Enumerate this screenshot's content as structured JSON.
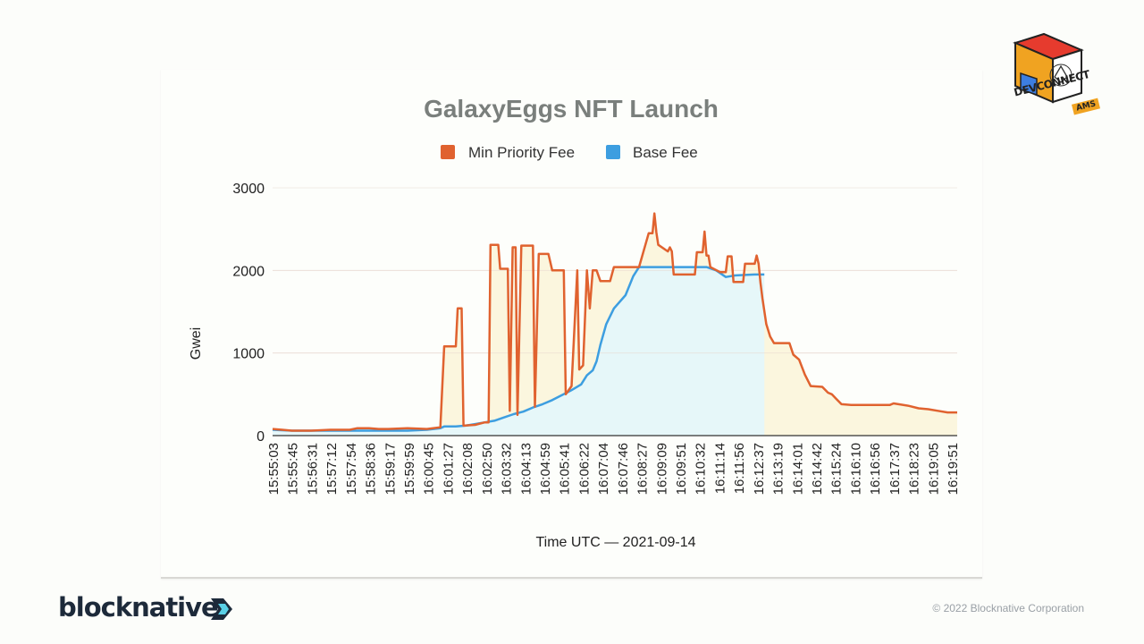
{
  "branding": {
    "company": "blocknative",
    "copyright": "© 2022 Blocknative Corporation",
    "event_logo_text": "DEVCONNECT",
    "event_logo_badge": "AMS"
  },
  "colors": {
    "priority": "#e0622f",
    "base": "#3d9ee0",
    "priority_fill": "#fbf6de",
    "base_fill": "#e6f7f9"
  },
  "chart_data": {
    "type": "area",
    "title": "GalaxyEggs NFT Launch",
    "xlabel": "Time UTC — 2021-09-14",
    "ylabel": "Gwei",
    "ylim": [
      0,
      3000
    ],
    "yticks": [
      "0",
      "1000",
      "2000",
      "3000"
    ],
    "legend_position": "top-center",
    "grid": true,
    "xticks": [
      "15:55:03",
      "15:55:45",
      "15:56:31",
      "15:57:12",
      "15:57:54",
      "15:58:36",
      "15:59:17",
      "15:59:59",
      "16:00:45",
      "16:01:27",
      "16:02:08",
      "16:02:50",
      "16:03:32",
      "16:04:13",
      "16:04:59",
      "16:05:41",
      "16:06:22",
      "16:07:04",
      "16:07:46",
      "16:08:27",
      "16:09:09",
      "16:09:51",
      "16:10:32",
      "16:11:14",
      "16:11:56",
      "16:12:37",
      "16:13:19",
      "16:14:01",
      "16:14:42",
      "16:15:24",
      "16:16:10",
      "16:16:56",
      "16:17:37",
      "16:18:23",
      "16:19:05",
      "16:19:51"
    ],
    "x_range": [
      0,
      35.5
    ],
    "series": [
      {
        "name": "Min Priority Fee",
        "points": [
          [
            0,
            80
          ],
          [
            0.5,
            70
          ],
          [
            1,
            60
          ],
          [
            2,
            60
          ],
          [
            3,
            70
          ],
          [
            4,
            70
          ],
          [
            4.4,
            90
          ],
          [
            5,
            90
          ],
          [
            5.5,
            80
          ],
          [
            6,
            80
          ],
          [
            7,
            90
          ],
          [
            8,
            80
          ],
          [
            8.7,
            100
          ],
          [
            8.9,
            1080
          ],
          [
            9.5,
            1080
          ],
          [
            9.6,
            1540
          ],
          [
            9.8,
            1540
          ],
          [
            9.9,
            120
          ],
          [
            10.5,
            130
          ],
          [
            11,
            160
          ],
          [
            11.2,
            160
          ],
          [
            11.3,
            2310
          ],
          [
            11.7,
            2310
          ],
          [
            11.8,
            2020
          ],
          [
            12.2,
            2020
          ],
          [
            12.3,
            300
          ],
          [
            12.45,
            2280
          ],
          [
            12.6,
            2280
          ],
          [
            12.7,
            250
          ],
          [
            12.9,
            2300
          ],
          [
            13.5,
            2300
          ],
          [
            13.6,
            350
          ],
          [
            13.8,
            2200
          ],
          [
            14.3,
            2200
          ],
          [
            14.5,
            2000
          ],
          [
            15,
            2000
          ],
          [
            15.1,
            2000
          ],
          [
            15.2,
            500
          ],
          [
            15.5,
            600
          ],
          [
            15.8,
            2000
          ],
          [
            15.9,
            800
          ],
          [
            16.1,
            850
          ],
          [
            16.3,
            2000
          ],
          [
            16.45,
            1540
          ],
          [
            16.6,
            2000
          ],
          [
            16.8,
            2000
          ],
          [
            17,
            1870
          ],
          [
            17.5,
            1870
          ],
          [
            17.7,
            2040
          ],
          [
            18.8,
            2040
          ],
          [
            19,
            2040
          ],
          [
            19.5,
            2450
          ],
          [
            19.7,
            2450
          ],
          [
            19.8,
            2690
          ],
          [
            19.9,
            2460
          ],
          [
            20,
            2310
          ],
          [
            20.5,
            2230
          ],
          [
            20.6,
            2280
          ],
          [
            20.7,
            2230
          ],
          [
            20.8,
            1950
          ],
          [
            21.9,
            1950
          ],
          [
            22,
            2220
          ],
          [
            22.3,
            2220
          ],
          [
            22.4,
            2470
          ],
          [
            22.5,
            2180
          ],
          [
            22.6,
            2180
          ],
          [
            22.7,
            2040
          ],
          [
            23.2,
            1980
          ],
          [
            23.5,
            1980
          ],
          [
            23.6,
            2170
          ],
          [
            23.8,
            2170
          ],
          [
            23.9,
            1860
          ],
          [
            24.4,
            1860
          ],
          [
            24.5,
            2080
          ],
          [
            25,
            2080
          ],
          [
            25.1,
            2180
          ],
          [
            25.2,
            2080
          ],
          [
            25.3,
            1850
          ],
          [
            25.4,
            1660
          ],
          [
            25.6,
            1350
          ],
          [
            25.8,
            1200
          ],
          [
            26,
            1120
          ],
          [
            26.8,
            1120
          ],
          [
            27,
            980
          ],
          [
            27.3,
            920
          ],
          [
            27.6,
            740
          ],
          [
            27.9,
            600
          ],
          [
            28.5,
            590
          ],
          [
            28.8,
            520
          ],
          [
            29,
            500
          ],
          [
            29.2,
            450
          ],
          [
            29.5,
            380
          ],
          [
            30,
            370
          ],
          [
            31,
            370
          ],
          [
            32,
            370
          ],
          [
            32.2,
            390
          ],
          [
            33,
            360
          ],
          [
            33.5,
            330
          ],
          [
            34,
            320
          ],
          [
            34.5,
            300
          ],
          [
            35,
            280
          ],
          [
            35.5,
            280
          ]
        ]
      },
      {
        "name": "Base Fee",
        "points": [
          [
            0,
            70
          ],
          [
            1,
            60
          ],
          [
            2,
            60
          ],
          [
            3,
            60
          ],
          [
            4,
            60
          ],
          [
            5,
            60
          ],
          [
            6,
            60
          ],
          [
            7,
            60
          ],
          [
            8,
            70
          ],
          [
            8.7,
            90
          ],
          [
            8.9,
            110
          ],
          [
            9.5,
            110
          ],
          [
            10,
            120
          ],
          [
            10.5,
            140
          ],
          [
            11,
            160
          ],
          [
            11.5,
            180
          ],
          [
            12,
            220
          ],
          [
            12.5,
            260
          ],
          [
            13,
            290
          ],
          [
            13.5,
            340
          ],
          [
            14,
            380
          ],
          [
            14.5,
            430
          ],
          [
            15,
            490
          ],
          [
            15.5,
            550
          ],
          [
            16,
            620
          ],
          [
            16.3,
            730
          ],
          [
            16.6,
            790
          ],
          [
            16.8,
            900
          ],
          [
            17,
            1100
          ],
          [
            17.3,
            1350
          ],
          [
            17.7,
            1540
          ],
          [
            18.3,
            1700
          ],
          [
            18.7,
            1930
          ],
          [
            19,
            2040
          ],
          [
            19.3,
            2040
          ],
          [
            20,
            2040
          ],
          [
            20.8,
            2040
          ],
          [
            21.5,
            2040
          ],
          [
            22,
            2040
          ],
          [
            22.5,
            2040
          ],
          [
            23,
            2000
          ],
          [
            23.5,
            1920
          ],
          [
            24,
            1940
          ],
          [
            25,
            1950
          ],
          [
            25.5,
            1950
          ]
        ]
      }
    ]
  }
}
